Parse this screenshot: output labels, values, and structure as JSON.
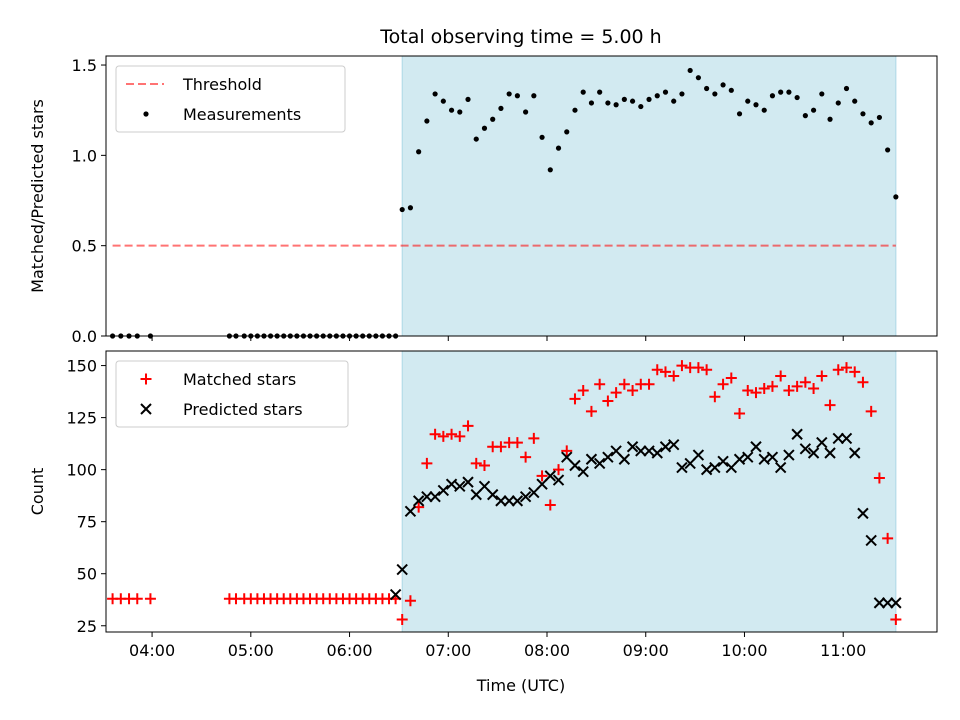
{
  "chart_data": {
    "title": "Total observing time = 5.00 h",
    "xlabel": "Time (UTC)",
    "x_ticks": [
      "04:00",
      "05:00",
      "06:00",
      "07:00",
      "08:00",
      "09:00",
      "10:00",
      "11:00"
    ],
    "xlim": [
      "03:32",
      "11:57"
    ],
    "shaded_interval": [
      "06:32",
      "11:32"
    ],
    "colors": {
      "shade": "#add8e6",
      "threshold": "#ff0000",
      "matched": "#ff0000",
      "predicted": "#000000",
      "measurements": "#000000"
    },
    "panels": [
      {
        "type": "scatter",
        "ylabel": "Matched/Predicted stars",
        "ylim": [
          0,
          1.55
        ],
        "y_ticks": [
          "0.0",
          "0.5",
          "1.0",
          "1.5"
        ],
        "legend_position": "top-left",
        "series": [
          {
            "name": "Threshold",
            "style": "dashed-line",
            "x": [
              "03:36",
              "11:32"
            ],
            "y": [
              0.5,
              0.5
            ]
          },
          {
            "name": "Measurements",
            "style": "dot",
            "x": [
              "03:36",
              "03:41",
              "03:46",
              "03:51",
              "03:59",
              "04:47",
              "04:51",
              "04:56",
              "05:00",
              "05:04",
              "05:08",
              "05:12",
              "05:16",
              "05:20",
              "05:24",
              "05:28",
              "05:32",
              "05:36",
              "05:40",
              "05:44",
              "05:48",
              "05:52",
              "05:56",
              "06:00",
              "06:04",
              "06:08",
              "06:12",
              "06:16",
              "06:20",
              "06:24",
              "06:28",
              "06:32",
              "06:37",
              "06:42",
              "06:47",
              "06:52",
              "06:57",
              "07:02",
              "07:07",
              "07:12",
              "07:17",
              "07:22",
              "07:27",
              "07:32",
              "07:37",
              "07:42",
              "07:47",
              "07:52",
              "07:57",
              "08:02",
              "08:07",
              "08:12",
              "08:17",
              "08:22",
              "08:27",
              "08:32",
              "08:37",
              "08:42",
              "08:47",
              "08:52",
              "08:57",
              "09:02",
              "09:07",
              "09:12",
              "09:17",
              "09:22",
              "09:27",
              "09:32",
              "09:37",
              "09:42",
              "09:47",
              "09:52",
              "09:57",
              "10:02",
              "10:07",
              "10:12",
              "10:17",
              "10:22",
              "10:27",
              "10:32",
              "10:37",
              "10:42",
              "10:47",
              "10:52",
              "10:57",
              "11:02",
              "11:07",
              "11:12",
              "11:17",
              "11:22",
              "11:27",
              "11:32"
            ],
            "y": [
              0,
              0,
              0,
              0,
              0,
              0,
              0,
              0,
              0,
              0,
              0,
              0,
              0,
              0,
              0,
              0,
              0,
              0,
              0,
              0,
              0,
              0,
              0,
              0,
              0,
              0,
              0,
              0,
              0,
              0,
              0,
              0.7,
              0.71,
              1.02,
              1.19,
              1.34,
              1.3,
              1.25,
              1.24,
              1.31,
              1.09,
              1.15,
              1.2,
              1.26,
              1.34,
              1.33,
              1.24,
              1.33,
              1.1,
              0.92,
              1.04,
              1.13,
              1.25,
              1.35,
              1.29,
              1.35,
              1.29,
              1.28,
              1.31,
              1.3,
              1.27,
              1.31,
              1.33,
              1.35,
              1.3,
              1.34,
              1.47,
              1.43,
              1.37,
              1.34,
              1.39,
              1.36,
              1.23,
              1.3,
              1.28,
              1.25,
              1.33,
              1.35,
              1.35,
              1.32,
              1.22,
              1.25,
              1.34,
              1.2,
              1.29,
              1.37,
              1.3,
              1.23,
              1.18,
              1.21,
              1.03,
              0.77
            ]
          }
        ]
      },
      {
        "type": "scatter",
        "ylabel": "Count",
        "ylim": [
          22,
          157
        ],
        "y_ticks": [
          "25",
          "50",
          "75",
          "100",
          "125",
          "150"
        ],
        "legend_position": "top-left",
        "series": [
          {
            "name": "Matched stars",
            "style": "plus",
            "x": [
              "03:36",
              "03:41",
              "03:46",
              "03:51",
              "03:59",
              "04:47",
              "04:51",
              "04:56",
              "05:00",
              "05:04",
              "05:08",
              "05:12",
              "05:16",
              "05:20",
              "05:24",
              "05:28",
              "05:32",
              "05:36",
              "05:40",
              "05:44",
              "05:48",
              "05:52",
              "05:56",
              "06:00",
              "06:04",
              "06:08",
              "06:12",
              "06:16",
              "06:20",
              "06:24",
              "06:28",
              "06:32",
              "06:37",
              "06:42",
              "06:47",
              "06:52",
              "06:57",
              "07:02",
              "07:07",
              "07:12",
              "07:17",
              "07:22",
              "07:27",
              "07:32",
              "07:37",
              "07:42",
              "07:47",
              "07:52",
              "07:57",
              "08:02",
              "08:07",
              "08:12",
              "08:17",
              "08:22",
              "08:27",
              "08:32",
              "08:37",
              "08:42",
              "08:47",
              "08:52",
              "08:57",
              "09:02",
              "09:07",
              "09:12",
              "09:17",
              "09:22",
              "09:27",
              "09:32",
              "09:37",
              "09:42",
              "09:47",
              "09:52",
              "09:57",
              "10:02",
              "10:07",
              "10:12",
              "10:17",
              "10:22",
              "10:27",
              "10:32",
              "10:37",
              "10:42",
              "10:47",
              "10:52",
              "10:57",
              "11:02",
              "11:07",
              "11:12",
              "11:17",
              "11:22",
              "11:27",
              "11:32"
            ],
            "y": [
              38,
              38,
              38,
              38,
              38,
              38,
              38,
              38,
              38,
              38,
              38,
              38,
              38,
              38,
              38,
              38,
              38,
              38,
              38,
              38,
              38,
              38,
              38,
              38,
              38,
              38,
              38,
              38,
              38,
              38,
              38,
              28,
              37,
              82,
              103,
              117,
              116,
              117,
              116,
              121,
              103,
              102,
              111,
              111,
              113,
              113,
              106,
              115,
              97,
              83,
              100,
              109,
              134,
              138,
              128,
              141,
              133,
              137,
              141,
              138,
              141,
              141,
              148,
              147,
              145,
              150,
              149,
              149,
              148,
              135,
              141,
              144,
              127,
              138,
              137,
              139,
              140,
              145,
              138,
              140,
              142,
              139,
              145,
              131,
              148,
              149,
              147,
              142,
              128,
              96,
              67,
              28
            ]
          },
          {
            "name": "Predicted stars",
            "style": "x",
            "x": [
              "06:28",
              "06:32",
              "06:37",
              "06:42",
              "06:47",
              "06:52",
              "06:57",
              "07:02",
              "07:07",
              "07:12",
              "07:17",
              "07:22",
              "07:27",
              "07:32",
              "07:37",
              "07:42",
              "07:47",
              "07:52",
              "07:57",
              "08:02",
              "08:07",
              "08:12",
              "08:17",
              "08:22",
              "08:27",
              "08:32",
              "08:37",
              "08:42",
              "08:47",
              "08:52",
              "08:57",
              "09:02",
              "09:07",
              "09:12",
              "09:17",
              "09:22",
              "09:27",
              "09:32",
              "09:37",
              "09:42",
              "09:47",
              "09:52",
              "09:57",
              "10:02",
              "10:07",
              "10:12",
              "10:17",
              "10:22",
              "10:27",
              "10:32",
              "10:37",
              "10:42",
              "10:47",
              "10:52",
              "10:57",
              "11:02",
              "11:07",
              "11:12",
              "11:17",
              "11:22",
              "11:27",
              "11:32"
            ],
            "y": [
              40,
              52,
              80,
              85,
              87,
              87,
              90,
              93,
              92,
              94,
              88,
              92,
              88,
              85,
              85,
              85,
              87,
              89,
              93,
              97,
              95,
              106,
              102,
              99,
              105,
              103,
              106,
              109,
              105,
              111,
              109,
              109,
              108,
              111,
              112,
              101,
              103,
              107,
              100,
              101,
              104,
              101,
              105,
              106,
              111,
              105,
              106,
              101,
              107,
              117,
              110,
              108,
              113,
              108,
              115,
              115,
              108,
              79,
              66,
              36,
              36,
              36
            ]
          }
        ]
      }
    ]
  }
}
